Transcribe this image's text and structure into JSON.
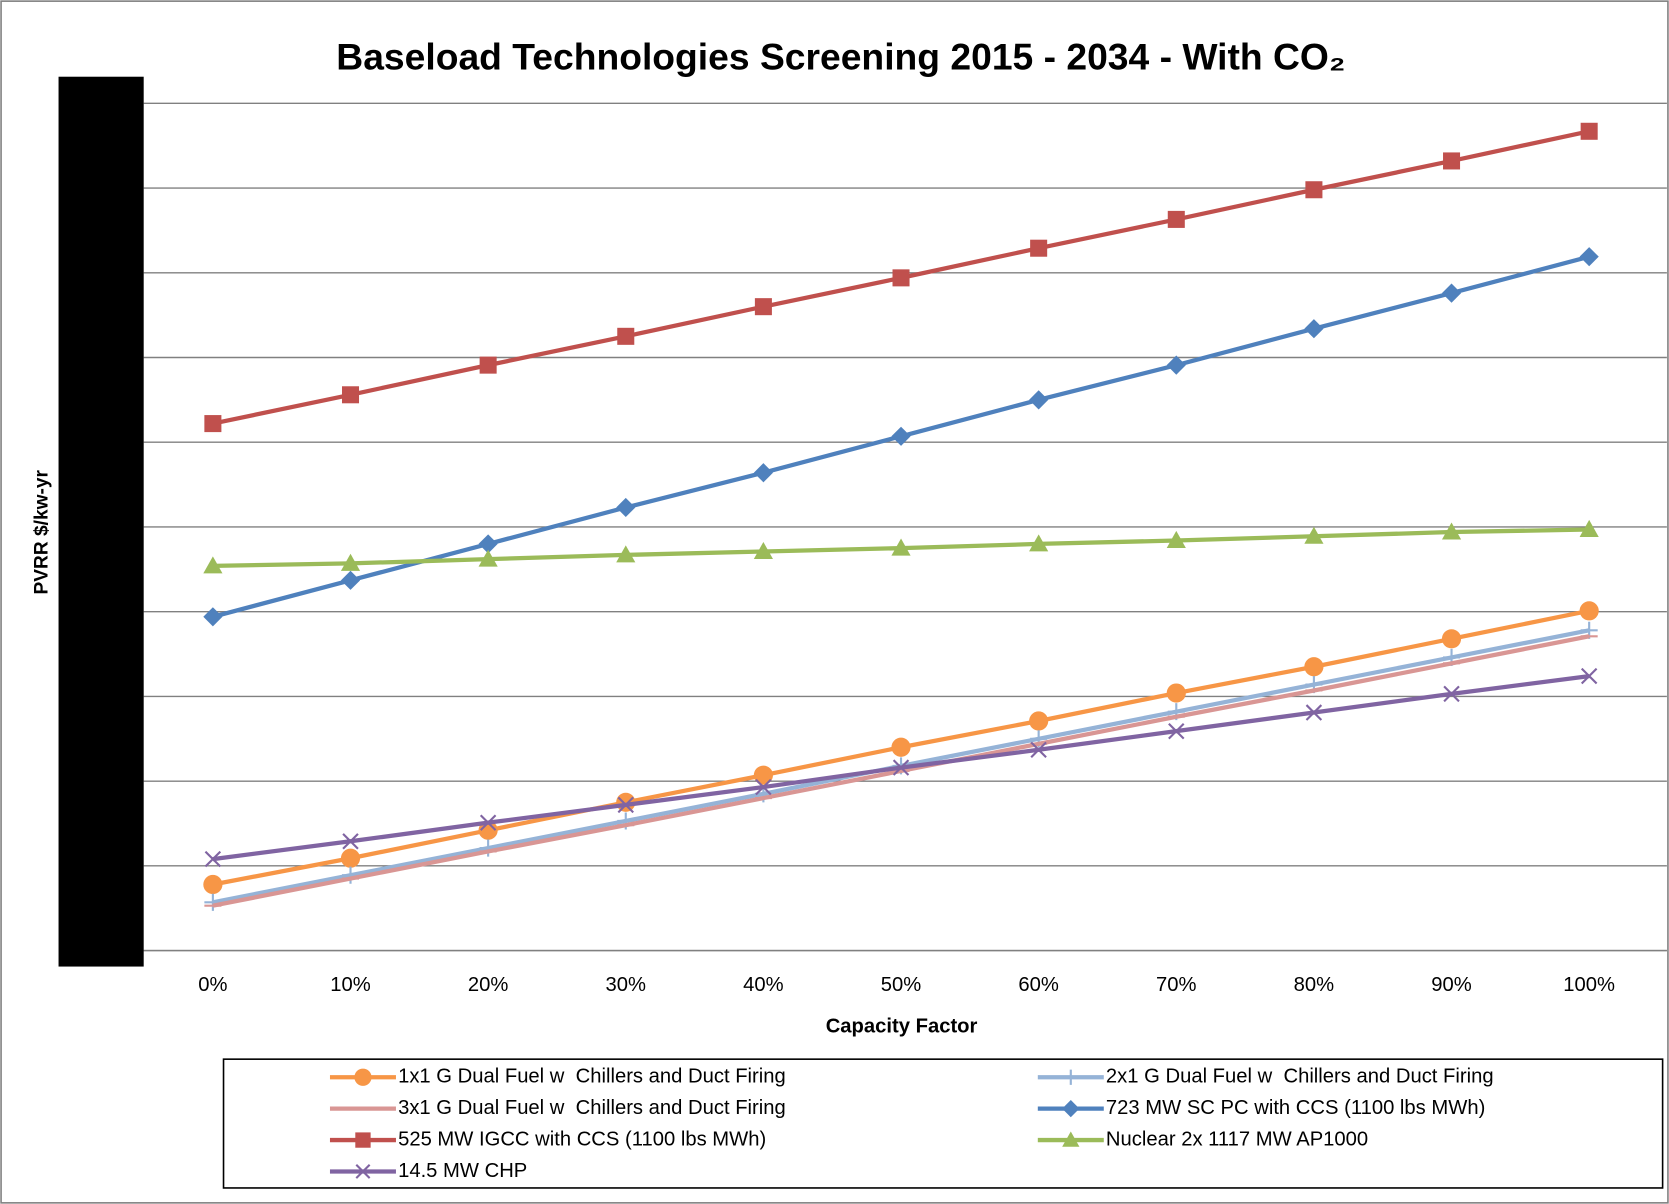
{
  "chart_data": {
    "type": "line",
    "title": "Baseload Technologies Screening 2015 - 2034 - With CO₂",
    "x_label": "Capacity Factor",
    "y_label": "PVRR $/kw-yr",
    "categories": [
      "0%",
      "10%",
      "20%",
      "30%",
      "40%",
      "50%",
      "60%",
      "70%",
      "80%",
      "90%",
      "100%"
    ],
    "ylim": [
      0,
      10
    ],
    "yticks": [
      0,
      1,
      2,
      3,
      4,
      5,
      6,
      7,
      8,
      9,
      10
    ],
    "grid": true,
    "legend": "bottom",
    "series": [
      {
        "name": "1x1 G Dual Fuel w  Chillers and Duct Firing",
        "color": "#F79646",
        "marker": "circle",
        "values": [
          0.78,
          1.09,
          1.42,
          1.75,
          2.07,
          2.4,
          2.71,
          3.04,
          3.35,
          3.68,
          4.01
        ]
      },
      {
        "name": "2x1 G Dual Fuel w  Chillers and Duct Firing",
        "color": "#95B3D7",
        "marker": "plus",
        "values": [
          0.57,
          0.89,
          1.21,
          1.53,
          1.85,
          2.18,
          2.5,
          2.82,
          3.14,
          3.46,
          3.78
        ]
      },
      {
        "name": "3x1 G Dual Fuel w  Chillers and Duct Firing",
        "color": "#D99694",
        "marker": "dash",
        "values": [
          0.53,
          0.85,
          1.17,
          1.48,
          1.8,
          2.12,
          2.44,
          2.76,
          3.07,
          3.39,
          3.71
        ]
      },
      {
        "name": "723 MW SC PC with CCS (1100 lbs MWh)",
        "color": "#4F81BD",
        "marker": "diamond",
        "values": [
          3.94,
          4.37,
          4.8,
          5.23,
          5.64,
          6.07,
          6.5,
          6.91,
          7.34,
          7.76,
          8.19
        ]
      },
      {
        "name": "525 MW IGCC with CCS (1100 lbs MWh)",
        "color": "#C0504D",
        "marker": "square",
        "values": [
          6.22,
          6.56,
          6.91,
          7.25,
          7.6,
          7.94,
          8.29,
          8.63,
          8.98,
          9.32,
          9.67
        ]
      },
      {
        "name": "Nuclear 2x 1117 MW AP1000",
        "color": "#9BBB59",
        "marker": "triangle",
        "values": [
          4.54,
          4.57,
          4.62,
          4.67,
          4.71,
          4.75,
          4.8,
          4.84,
          4.89,
          4.94,
          4.97
        ]
      },
      {
        "name": "14.5 MW CHP",
        "color": "#8064A2",
        "marker": "x",
        "values": [
          1.08,
          1.29,
          1.51,
          1.72,
          1.93,
          2.16,
          2.37,
          2.59,
          2.81,
          3.03,
          3.24
        ]
      }
    ]
  }
}
